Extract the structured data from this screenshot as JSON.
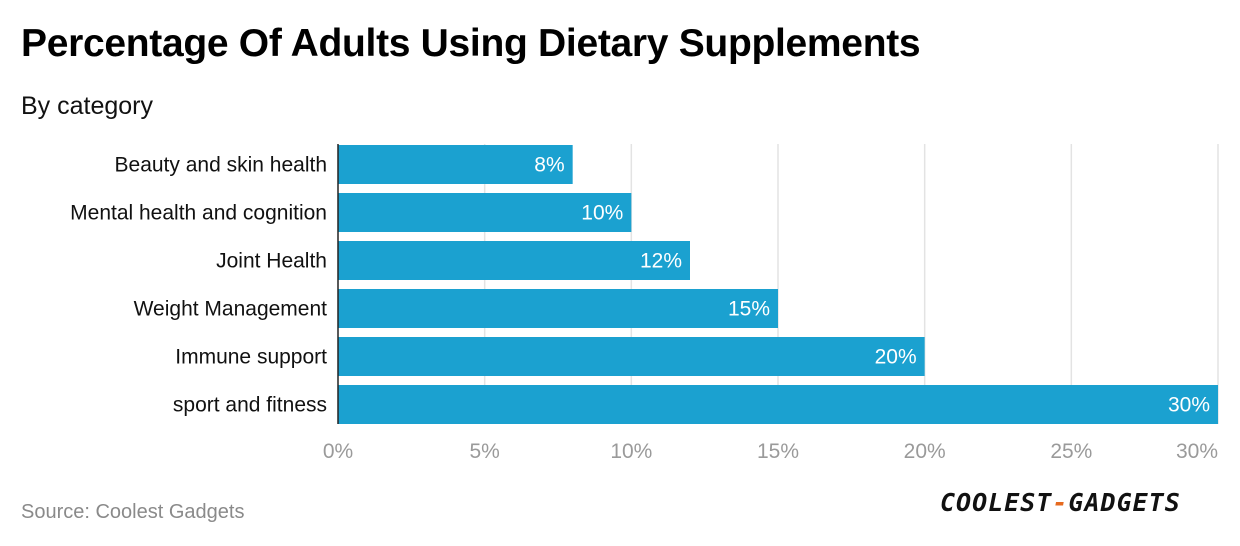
{
  "title": "Percentage Of Adults Using Dietary Supplements",
  "subtitle": "By category",
  "source": "Source: Coolest Gadgets",
  "logo": {
    "part1": "COOLEST",
    "dash": "-",
    "part2": "GADGETS"
  },
  "colors": {
    "bar": "#1ba1d0",
    "grid": "#e3e3e3",
    "tick_text": "#9a9a9a",
    "bar_label": "#ffffff",
    "logo_dash": "#e66a1f"
  },
  "chart_data": {
    "type": "bar",
    "orientation": "horizontal",
    "categories": [
      "Beauty and skin health",
      "Mental health and cognition",
      "Joint Health",
      "Weight Management",
      "Immune support",
      "sport and fitness"
    ],
    "values": [
      8,
      10,
      12,
      15,
      20,
      30
    ],
    "value_labels": [
      "8%",
      "10%",
      "12%",
      "15%",
      "20%",
      "30%"
    ],
    "xlim": [
      0,
      30
    ],
    "xticks": [
      0,
      5,
      10,
      15,
      20,
      25,
      30
    ],
    "xtick_labels": [
      "0%",
      "5%",
      "10%",
      "15%",
      "20%",
      "25%",
      "30%"
    ],
    "grid": true,
    "xlabel": "",
    "ylabel": ""
  }
}
